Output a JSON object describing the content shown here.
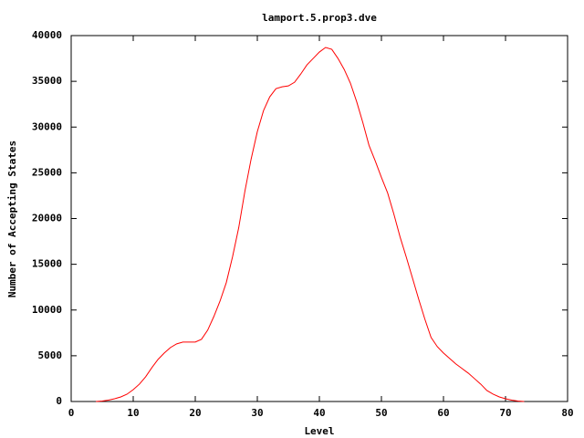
{
  "chart_data": {
    "type": "line",
    "title": "lamport.5.prop3.dve",
    "x_label": "Level",
    "y_label": "Number of Accepting States",
    "x": [
      4,
      5,
      6,
      7,
      8,
      9,
      10,
      11,
      12,
      13,
      14,
      15,
      16,
      17,
      18,
      19,
      20,
      21,
      22,
      23,
      24,
      25,
      26,
      27,
      28,
      29,
      30,
      31,
      32,
      33,
      34,
      35,
      36,
      37,
      38,
      39,
      40,
      41,
      42,
      43,
      44,
      45,
      46,
      47,
      48,
      49,
      50,
      51,
      52,
      53,
      54,
      55,
      56,
      57,
      58,
      59,
      60,
      61,
      62,
      63,
      64,
      65,
      66,
      67,
      68,
      69,
      70,
      71,
      72,
      73
    ],
    "series": [
      {
        "color": "#ff0000",
        "values": [
          0,
          50,
          150,
          300,
          500,
          800,
          1300,
          1900,
          2700,
          3700,
          4600,
          5300,
          5900,
          6300,
          6500,
          6500,
          6500,
          6800,
          7800,
          9300,
          11000,
          13000,
          15800,
          19000,
          23000,
          26500,
          29500,
          31800,
          33300,
          34200,
          34400,
          34500,
          34900,
          35800,
          36800,
          37500,
          38200,
          38700,
          38500,
          37500,
          36300,
          34800,
          32800,
          30500,
          28000,
          26300,
          24500,
          22800,
          20500,
          18000,
          15800,
          13500,
          11200,
          9000,
          7000,
          6000,
          5300,
          4700,
          4100,
          3600,
          3100,
          2500,
          1900,
          1200,
          800,
          500,
          300,
          150,
          50,
          0
        ]
      }
    ],
    "xlim": [
      0,
      80
    ],
    "xticks": [
      0,
      10,
      20,
      30,
      40,
      50,
      60,
      70,
      80
    ],
    "ylim": [
      0,
      40000
    ],
    "yticks": [
      0,
      5000,
      10000,
      15000,
      20000,
      25000,
      30000,
      35000,
      40000
    ]
  }
}
